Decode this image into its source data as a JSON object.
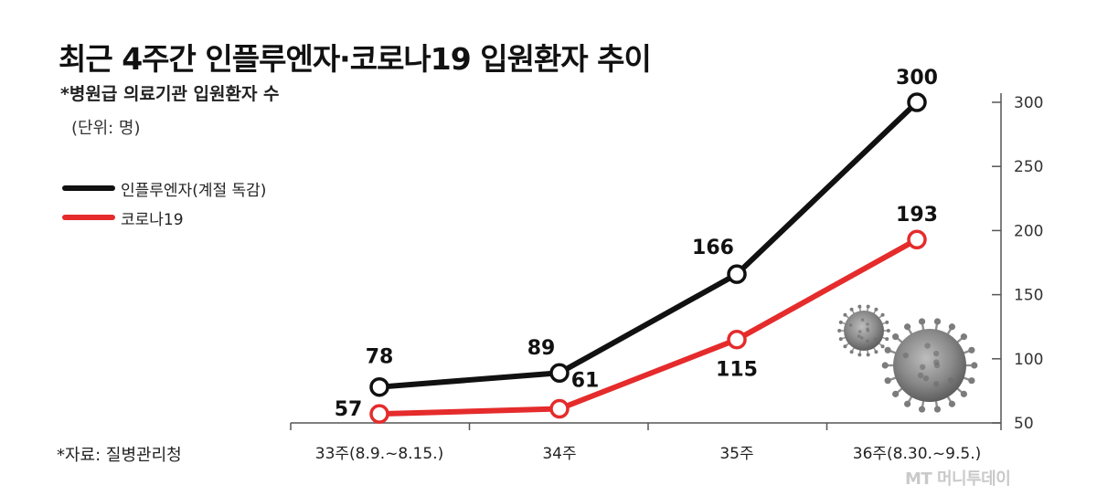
{
  "header": {
    "title": "최근 4주간 인플루엔자·코로나19 입원환자 추이",
    "subtitle": "*병원급 의료기관 입원환자 수",
    "unit": "(단위: 명)"
  },
  "footer": {
    "source": "*자료: 질병관리청",
    "watermark": "MT 머니투데이"
  },
  "chart_data": {
    "type": "line",
    "title": "최근 4주간 인플루엔자·코로나19 입원환자 추이",
    "subtitle": "*병원급 의료기관 입원환자 수",
    "unit": "(단위: 명)",
    "categories": [
      "33주(8.9.~8.15.)",
      "34주",
      "35주",
      "36주(8.30.~9.5.)"
    ],
    "series": [
      {
        "name": "인플루엔자(계절 독감)",
        "values": [
          78,
          89,
          166,
          300
        ],
        "color": "#111111"
      },
      {
        "name": "코로나19",
        "values": [
          57,
          61,
          115,
          193
        ],
        "color": "#e52b2b"
      }
    ],
    "ylim": [
      50,
      300
    ],
    "yticks": [
      50,
      100,
      150,
      200,
      250,
      300
    ],
    "y_axis_side": "right",
    "grid": false,
    "legend": "left"
  }
}
